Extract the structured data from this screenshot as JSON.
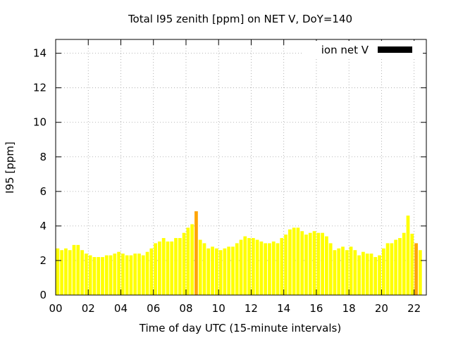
{
  "chart_data": {
    "type": "bar",
    "title": "Total I95 zenith [ppm] on NET V, DoY=140",
    "xlabel": "Time of day UTC (15-minute intervals)",
    "ylabel": "I95 [ppm]",
    "xlim": [
      0,
      22.75
    ],
    "ylim": [
      0,
      14.8
    ],
    "yticks": [
      "0",
      "2",
      "4",
      "6",
      "8",
      "10",
      "12",
      "14"
    ],
    "xticks": [
      "00",
      "02",
      "04",
      "06",
      "08",
      "10",
      "12",
      "14",
      "16",
      "18",
      "20",
      "22"
    ],
    "grid": true,
    "legend": {
      "position": "top-right",
      "entries": [
        {
          "label": "ion net V",
          "color": "#000000"
        }
      ]
    },
    "bar_color": "#ffff00",
    "highlight_color": "#ffa500",
    "interval_hours": 0.25,
    "values": [
      2.7,
      2.6,
      2.7,
      2.6,
      2.9,
      2.9,
      2.6,
      2.4,
      2.3,
      2.2,
      2.2,
      2.2,
      2.3,
      2.3,
      2.4,
      2.5,
      2.4,
      2.3,
      2.3,
      2.4,
      2.4,
      2.3,
      2.5,
      2.7,
      3.0,
      3.1,
      3.3,
      3.1,
      3.1,
      3.3,
      3.3,
      3.6,
      3.9,
      4.1,
      4.85,
      3.2,
      3.0,
      2.7,
      2.8,
      2.7,
      2.6,
      2.7,
      2.8,
      2.8,
      3.0,
      3.2,
      3.4,
      3.3,
      3.3,
      3.2,
      3.1,
      3.0,
      3.0,
      3.1,
      3.0,
      3.3,
      3.5,
      3.8,
      3.9,
      3.9,
      3.7,
      3.5,
      3.6,
      3.7,
      3.6,
      3.6,
      3.4,
      3.0,
      2.6,
      2.7,
      2.8,
      2.6,
      2.8,
      2.6,
      2.3,
      2.5,
      2.4,
      2.4,
      2.2,
      2.3,
      2.7,
      3.0,
      3.0,
      3.2,
      3.3,
      3.6,
      4.6,
      3.55,
      3.0,
      2.6
    ],
    "highlighted_indices": [
      34,
      88
    ]
  }
}
